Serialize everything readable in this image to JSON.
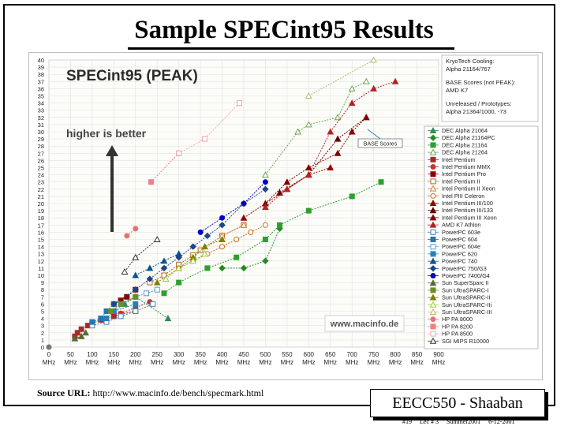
{
  "slide": {
    "title": "Sample SPECint95 Results",
    "source_label": "Source URL:",
    "source_url": "http://www.macinfo.de/bench/specmark.html",
    "course": "EECC550 - Shaaban",
    "footer": {
      "slide_no": "#19",
      "lec": "Lec # 3",
      "term": "Summer2001",
      "date": "6-12-2001"
    }
  },
  "chart_data": {
    "type": "scatter",
    "title": "SPECint95 (PEAK)",
    "annotation": "higher is better",
    "watermark": "www.macinfo.de",
    "base_scores_label": "BASE Scores",
    "notes": [
      "KryoTech Cooling:",
      "Alpha 21164/767",
      "BASE Scores (not PEAK):",
      "AMD K7",
      "Unreleased / Prototypes:",
      "Alpha 21364/1000, -73"
    ],
    "x_ticks": [
      "0 MHz",
      "50 MHz",
      "100 MHz",
      "150 MHz",
      "200 MHz",
      "250 MHz",
      "300 MHz",
      "350 MHz",
      "400 MHz",
      "450 MHz",
      "500 MHz",
      "550 MHz",
      "600 MHz",
      "650 MHz",
      "700 MHz",
      "750 MHz",
      "800 MHz",
      "850 MHz",
      "900 MHz"
    ],
    "x_ticks_top": [
      "0",
      "50",
      "100",
      "150",
      "200",
      "250",
      "300",
      "350",
      "400",
      "450",
      "500",
      "550",
      "600",
      "650",
      "700",
      "750",
      "800",
      "850",
      "900"
    ],
    "x_ticks_bottom": [
      "MHz",
      "MHz",
      "MHz",
      "MHz",
      "MHz",
      "MHz",
      "MHz",
      "MHz",
      "MHz",
      "MHz",
      "MHz",
      "MHz",
      "MHz",
      "MHz",
      "MHz",
      "MHz",
      "MHz",
      "MHz",
      "MHz"
    ],
    "y_ticks": [
      "0",
      "1",
      "2",
      "3",
      "4",
      "5",
      "6",
      "7",
      "8",
      "9",
      "10",
      "11",
      "12",
      "13",
      "14",
      "15",
      "16",
      "17",
      "18",
      "19",
      "20",
      "21",
      "22",
      "23",
      "24",
      "25",
      "26",
      "27",
      "28",
      "29",
      "30",
      "31",
      "32",
      "33",
      "34",
      "35",
      "36",
      "37",
      "38",
      "39",
      "40"
    ],
    "xlim": [
      0,
      900
    ],
    "ylim": [
      0,
      40
    ],
    "grid": true,
    "legend_position": "right",
    "series": [
      {
        "name": "DEC Alpha 21064",
        "color": "#2e8b57",
        "marker": "triangle",
        "x": [
          150,
          175,
          200,
          275
        ],
        "y": [
          5,
          6,
          7,
          4
        ]
      },
      {
        "name": "DEC Alpha 21164PC",
        "color": "#228b22",
        "marker": "diamond",
        "x": [
          400,
          450,
          500,
          533
        ],
        "y": [
          11,
          11,
          12,
          16.5
        ]
      },
      {
        "name": "DEC Alpha 21164",
        "color": "#2ca02c",
        "marker": "square",
        "x": [
          266,
          300,
          366,
          433,
          500,
          533,
          600,
          700,
          767
        ],
        "y": [
          7.5,
          9,
          11,
          12.5,
          15,
          17,
          19,
          21,
          23
        ]
      },
      {
        "name": "DEC Alpha 21264",
        "color": "#6aa84f",
        "marker": "open-triangle",
        "x": [
          500,
          575,
          600,
          667,
          700,
          733
        ],
        "y": [
          24,
          30,
          31,
          32,
          36,
          37
        ]
      },
      {
        "name": "Intel Pentium",
        "color": "#a52a2a",
        "marker": "square",
        "x": [
          60,
          66,
          75,
          90,
          100,
          120,
          133,
          150,
          166,
          200
        ],
        "y": [
          1.5,
          2,
          2.5,
          3,
          3.3,
          3.8,
          4,
          4.3,
          4.6,
          5
        ]
      },
      {
        "name": "Intel Pentium MMX",
        "color": "#c0392b",
        "marker": "circle",
        "x": [
          166,
          200,
          233
        ],
        "y": [
          4.7,
          5.5,
          6.3
        ]
      },
      {
        "name": "Intel Pentium Pro",
        "color": "#8b0000",
        "marker": "square",
        "x": [
          150,
          166,
          180,
          200
        ],
        "y": [
          6,
          6.5,
          7,
          8
        ]
      },
      {
        "name": "Intel Pentium II",
        "color": "#b5651d",
        "marker": "open-square",
        "x": [
          233,
          266,
          300,
          333,
          350,
          400,
          450
        ],
        "y": [
          9,
          10,
          11.5,
          12.8,
          13.5,
          15.5,
          17
        ]
      },
      {
        "name": "Intel Pentium II Xeon",
        "color": "#cd853f",
        "marker": "open-triangle",
        "x": [
          400,
          450
        ],
        "y": [
          15.5,
          17
        ]
      },
      {
        "name": "Intel PIII Celeron",
        "color": "#d2691e",
        "marker": "open-circle",
        "x": [
          300,
          333,
          366,
          400,
          433,
          466,
          500
        ],
        "y": [
          11,
          12,
          13,
          14,
          15,
          16,
          17
        ]
      },
      {
        "name": "Intel Pentium III/100",
        "color": "#990000",
        "marker": "triangle",
        "x": [
          450,
          500,
          550,
          600,
          650
        ],
        "y": [
          18,
          20,
          22,
          24,
          25
        ]
      },
      {
        "name": "Intel Pentium III/133",
        "color": "#660000",
        "marker": "triangle",
        "x": [
          533,
          600,
          667,
          733
        ],
        "y": [
          21.5,
          24,
          29,
          32
        ]
      },
      {
        "name": "Intel Pentium III Xeon",
        "color": "#800000",
        "marker": "triangle",
        "x": [
          500,
          550,
          600,
          667,
          700,
          733
        ],
        "y": [
          20,
          23,
          25,
          27,
          30,
          32
        ]
      },
      {
        "name": "AMD K7 Athlon",
        "color": "#b22222",
        "marker": "triangle",
        "x": [
          500,
          550,
          600,
          650,
          700,
          750,
          800
        ],
        "y": [
          19.5,
          22,
          24,
          30,
          34,
          36,
          37
        ]
      },
      {
        "name": "PowerPC 603e",
        "color": "#4682b4",
        "marker": "open-square",
        "x": [
          100,
          133,
          166,
          200,
          240
        ],
        "y": [
          3,
          3.5,
          4.3,
          5,
          6
        ]
      },
      {
        "name": "PowerPC 604",
        "color": "#1f77b4",
        "marker": "square",
        "x": [
          100,
          120,
          133,
          150
        ],
        "y": [
          3.5,
          4,
          5,
          6
        ]
      },
      {
        "name": "PowerPC 604e",
        "color": "#5b9bd5",
        "marker": "open-square",
        "x": [
          166,
          200,
          225,
          250
        ],
        "y": [
          6,
          7,
          7.5,
          8
        ]
      },
      {
        "name": "PowerPC 620",
        "color": "#2980b9",
        "marker": "square",
        "x": [
          133,
          150,
          200
        ],
        "y": [
          4,
          5,
          6
        ]
      },
      {
        "name": "PowerPC 740",
        "color": "#0b5394",
        "marker": "triangle",
        "x": [
          200,
          233,
          266,
          300
        ],
        "y": [
          10,
          11,
          12,
          13
        ]
      },
      {
        "name": "PowerPC 750/G3",
        "color": "#1c4587",
        "marker": "diamond",
        "x": [
          150,
          200,
          233,
          266,
          300,
          333,
          366,
          400,
          450,
          500
        ],
        "y": [
          6,
          8,
          9.5,
          11,
          12.5,
          14,
          15.5,
          17,
          20,
          22
        ]
      },
      {
        "name": "PowerPC 7400/G4",
        "color": "#0000cd",
        "marker": "circle",
        "x": [
          350,
          400,
          450,
          500
        ],
        "y": [
          16,
          18,
          20,
          23
        ]
      },
      {
        "name": "Sun SuperSparc II",
        "color": "#556b2f",
        "marker": "triangle",
        "x": [
          60,
          75,
          85
        ],
        "y": [
          1.2,
          1.5,
          2
        ]
      },
      {
        "name": "Sun UltraSPARC-I",
        "color": "#6b8e23",
        "marker": "square",
        "x": [
          143,
          167,
          200
        ],
        "y": [
          5,
          6,
          7
        ]
      },
      {
        "name": "Sun UltraSPARC-II",
        "color": "#808000",
        "marker": "triangle",
        "x": [
          250,
          300,
          333,
          360,
          400
        ],
        "y": [
          9,
          11,
          12.5,
          14,
          15
        ]
      },
      {
        "name": "Sun UltraSPARC-IIi",
        "color": "#9acd32",
        "marker": "open-triangle",
        "x": [
          270,
          300,
          333,
          360
        ],
        "y": [
          9.5,
          11,
          12,
          13
        ]
      },
      {
        "name": "Sun UltraSPARC-III",
        "color": "#bdb76b",
        "marker": "open-triangle",
        "x": [
          600,
          750
        ],
        "y": [
          35,
          40
        ]
      },
      {
        "name": "HP PA 8000",
        "color": "#e57373",
        "marker": "circle",
        "x": [
          180,
          200
        ],
        "y": [
          15.5,
          16.5
        ]
      },
      {
        "name": "HP PA 8200",
        "color": "#f08080",
        "marker": "square",
        "x": [
          236,
          300
        ],
        "y": [
          23,
          27
        ]
      },
      {
        "name": "HP PA 8500",
        "color": "#f4a6a6",
        "marker": "open-square",
        "x": [
          300,
          360,
          440
        ],
        "y": [
          27,
          29,
          34
        ]
      },
      {
        "name": "SGI MIPS R10000",
        "color": "#333333",
        "marker": "open-triangle",
        "x": [
          175,
          200,
          250
        ],
        "y": [
          10.5,
          12.5,
          15
        ]
      }
    ]
  }
}
